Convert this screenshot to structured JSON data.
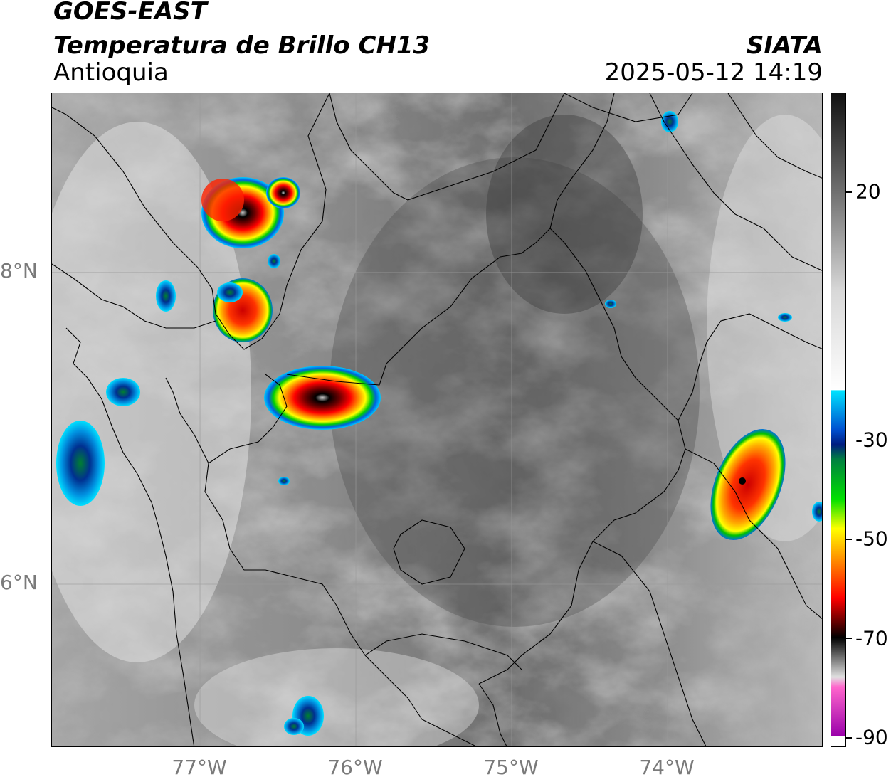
{
  "header": {
    "title_line1": "GOES-EAST",
    "title_line2": "Temperatura de Brillo CH13",
    "region": "Antioquia",
    "organization": "SIATA",
    "timestamp": "2025-05-12 14:19"
  },
  "map": {
    "lat_labels": [
      "8°N",
      "6°N"
    ],
    "lon_labels": [
      "77°W",
      "76°W",
      "75°W",
      "74°W"
    ],
    "lat_values": [
      8,
      6
    ],
    "lon_values": [
      -77,
      -76,
      -75,
      -74
    ],
    "extent": {
      "lon_min": -77.95,
      "lon_max": -73.0,
      "lat_min": 4.95,
      "lat_max": 9.15
    },
    "storm_cells": [
      {
        "name": "cell-uraba-north",
        "lon": -76.7,
        "lat": 8.5,
        "min_temp": -70
      },
      {
        "name": "cell-uraba-north-east",
        "lon": -76.38,
        "lat": 8.62,
        "min_temp": -72
      },
      {
        "name": "cell-uraba-mid",
        "lon": -76.7,
        "lat": 7.9,
        "min_temp": -60
      },
      {
        "name": "cell-central-west",
        "lon": -76.28,
        "lat": 7.3,
        "min_temp": -80
      },
      {
        "name": "cell-east",
        "lon": -73.55,
        "lat": 6.7,
        "min_temp": -65
      },
      {
        "name": "cell-south-west",
        "lon": -76.2,
        "lat": 5.15,
        "min_temp": -40
      }
    ]
  },
  "colorbar": {
    "labels": [
      "20",
      "-30",
      "-50",
      "-70",
      "-90"
    ],
    "values": [
      20,
      -30,
      -50,
      -70,
      -90
    ],
    "range": [
      -92,
      40
    ],
    "stops": [
      {
        "t": 40,
        "color": "#111111"
      },
      {
        "t": 20,
        "color": "#707070"
      },
      {
        "t": 0,
        "color": "#d8d8d8"
      },
      {
        "t": -20,
        "color": "#ffffff"
      },
      {
        "t": -20.01,
        "color": "#00e5ff"
      },
      {
        "t": -28,
        "color": "#0050d0"
      },
      {
        "t": -31,
        "color": "#001c80"
      },
      {
        "t": -34,
        "color": "#008040"
      },
      {
        "t": -42,
        "color": "#00e000"
      },
      {
        "t": -48,
        "color": "#ffff00"
      },
      {
        "t": -55,
        "color": "#ff8000"
      },
      {
        "t": -62,
        "color": "#ff0000"
      },
      {
        "t": -67,
        "color": "#600000"
      },
      {
        "t": -70,
        "color": "#000000"
      },
      {
        "t": -78,
        "color": "#e0e0e0"
      },
      {
        "t": -80,
        "color": "#ff66cc"
      },
      {
        "t": -90,
        "color": "#9900aa"
      },
      {
        "t": -90.01,
        "color": "#ffffff"
      }
    ]
  }
}
